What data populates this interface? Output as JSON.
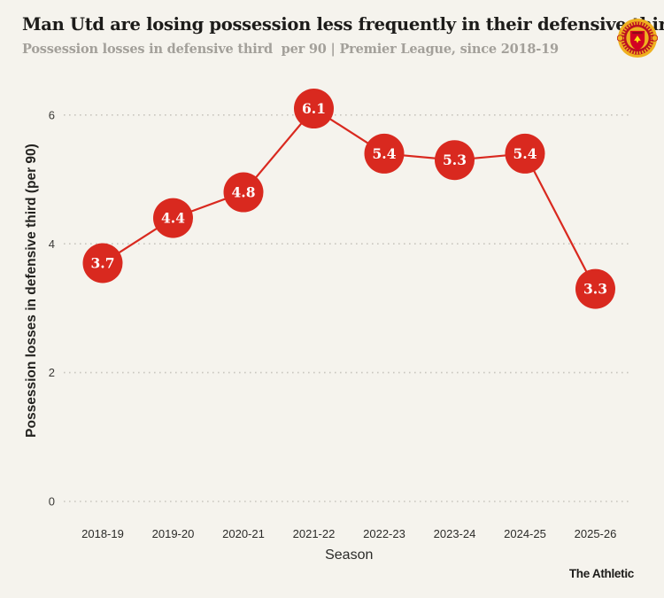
{
  "header": {
    "title": "Man Utd are losing possession less frequently in their defensive third",
    "subtitle": "Possession losses in defensive third  per 90 | Premier League, since 2018-19",
    "logo": "manchester-united-crest"
  },
  "footer": {
    "brand": "The Athletic"
  },
  "colors": {
    "background": "#f5f3ed",
    "accent_red": "#d9291f",
    "grid": "#c9c6bf",
    "title_text": "#1d1c1a",
    "subtitle_text": "#a3a09a",
    "axis_text": "#2b2b29",
    "point_label_text": "#ffffff"
  },
  "chart_data": {
    "type": "line",
    "categories": [
      "2018-19",
      "2019-20",
      "2020-21",
      "2021-22",
      "2022-23",
      "2023-24",
      "2024-25",
      "2025-26"
    ],
    "values": [
      3.7,
      4.4,
      4.8,
      6.1,
      5.4,
      5.3,
      5.4,
      3.3
    ],
    "title": "Man Utd are losing possession less frequently in their defensive third",
    "xlabel": "Season",
    "ylabel": "Possession losses in defensive third (per 90)",
    "yticks": [
      0,
      2,
      4,
      6
    ],
    "ylim": [
      0,
      6.5
    ],
    "grid": "dotted-horizontal",
    "legend": "none",
    "point_labels_shown": true,
    "marker_style": "large-filled-circle-with-value"
  }
}
